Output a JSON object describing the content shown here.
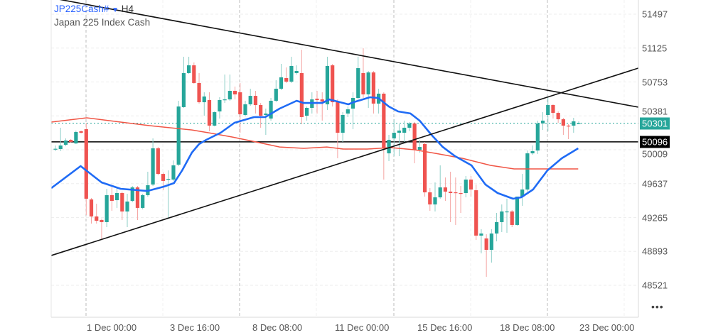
{
  "header": {
    "symbol": "JP225Cash#",
    "dropdown_icon": "caret-down-icon",
    "timeframe": "H4",
    "description": "Japan 225 Index Cash"
  },
  "more_menu": "•••",
  "colors": {
    "bull": "#26a69a",
    "bear": "#ef5350",
    "bull_wick": "#8ecfc8",
    "bear_wick": "#f5a4a2",
    "fast_ma": "#1f6bf5",
    "slow_ma": "#f05545",
    "trendline": "#111111",
    "current_price": "#26a69a",
    "level_badge": "#000000"
  },
  "chart_data": {
    "type": "candlestick",
    "title": "",
    "y_ticks": [
      51497,
      51125,
      50753,
      50381,
      50009,
      49637,
      49265,
      48893,
      48521
    ],
    "ylim": [
      48340,
      51653
    ],
    "x_ticks": [
      "1 Dec 00:00",
      "3 Dec 16:00",
      "8 Dec 08:00",
      "11 Dec 00:00",
      "15 Dec 16:00",
      "18 Dec 08:00",
      "23 Dec 00:00"
    ],
    "grid": true,
    "current_price": 50301,
    "horizontal_level": 50096,
    "ohlc": [
      [
        50017,
        50056,
        49994,
        50020
      ],
      [
        50017,
        50251,
        49994,
        50056
      ],
      [
        50064,
        50134,
        50048,
        50111
      ],
      [
        50118,
        50126,
        50087,
        50095
      ],
      [
        50079,
        50220,
        50072,
        50204
      ],
      [
        50212,
        50220,
        50188,
        50196
      ],
      [
        50235,
        50305,
        49293,
        49472
      ],
      [
        49464,
        49480,
        49199,
        49277
      ],
      [
        49277,
        49417,
        49199,
        49230
      ],
      [
        49238,
        49254,
        49028,
        49215
      ],
      [
        49215,
        49581,
        49160,
        49511
      ],
      [
        49511,
        49596,
        49339,
        49448
      ],
      [
        49456,
        49604,
        49371,
        49534
      ],
      [
        49534,
        49550,
        49238,
        49332
      ],
      [
        49332,
        49526,
        49160,
        49441
      ],
      [
        49448,
        49612,
        49433,
        49596
      ],
      [
        49596,
        49612,
        49238,
        49371
      ],
      [
        49371,
        49526,
        49355,
        49511
      ],
      [
        49511,
        49768,
        49495,
        49620
      ],
      [
        49628,
        50134,
        49612,
        50025
      ],
      [
        50025,
        50040,
        49729,
        49744
      ],
      [
        49744,
        49760,
        49565,
        49667
      ],
      [
        49682,
        49783,
        49261,
        49690
      ],
      [
        49682,
        49892,
        49667,
        49838
      ],
      [
        49846,
        50547,
        49830,
        50484
      ],
      [
        50477,
        51030,
        50469,
        50851
      ],
      [
        50851,
        51030,
        50843,
        50936
      ],
      [
        50936,
        50967,
        50734,
        50742
      ],
      [
        50742,
        50851,
        50516,
        50531
      ],
      [
        50531,
        50640,
        50383,
        50594
      ],
      [
        50555,
        50640,
        50212,
        50274
      ],
      [
        50274,
        50430,
        50266,
        50422
      ],
      [
        50430,
        50586,
        50352,
        50555
      ],
      [
        50555,
        50835,
        50523,
        50562
      ],
      [
        50562,
        50835,
        50547,
        50656
      ],
      [
        50656,
        50703,
        50562,
        50617
      ],
      [
        50640,
        50742,
        50196,
        50399
      ],
      [
        50391,
        50547,
        50375,
        50508
      ],
      [
        50508,
        50679,
        50492,
        50601
      ],
      [
        50601,
        50656,
        50407,
        50500
      ],
      [
        50500,
        50523,
        50251,
        50383
      ],
      [
        50391,
        50461,
        50173,
        50407
      ],
      [
        50352,
        50578,
        50329,
        50547
      ],
      [
        50547,
        50773,
        50531,
        50679
      ],
      [
        50679,
        50952,
        50664,
        50804
      ],
      [
        50796,
        50913,
        50742,
        50757
      ],
      [
        50757,
        51030,
        50742,
        50929
      ],
      [
        50851,
        50936,
        50835,
        50874
      ],
      [
        50851,
        51108,
        50290,
        50368
      ],
      [
        50383,
        50484,
        50329,
        50469
      ],
      [
        50469,
        50640,
        50407,
        50562
      ],
      [
        50570,
        50656,
        50407,
        50555
      ],
      [
        50562,
        50640,
        50329,
        50539
      ],
      [
        50508,
        51030,
        50446,
        50929
      ],
      [
        50936,
        50952,
        50484,
        50531
      ],
      [
        50531,
        50562,
        49916,
        50196
      ],
      [
        50196,
        50422,
        50095,
        50391
      ],
      [
        50407,
        50484,
        50368,
        50453
      ],
      [
        50461,
        50640,
        50235,
        50578
      ],
      [
        50578,
        51030,
        50562,
        50905
      ],
      [
        50851,
        51123,
        50578,
        50617
      ],
      [
        50617,
        50874,
        50469,
        50858
      ],
      [
        50858,
        50874,
        50407,
        50516
      ],
      [
        50516,
        50679,
        50407,
        50625
      ],
      [
        50625,
        50640,
        49682,
        50033
      ],
      [
        49970,
        50173,
        49885,
        50118
      ],
      [
        50134,
        50344,
        49939,
        50196
      ],
      [
        50196,
        50290,
        49939,
        50220
      ],
      [
        50196,
        50329,
        50095,
        50251
      ],
      [
        50251,
        50313,
        50212,
        50298
      ],
      [
        50298,
        50313,
        49861,
        50009
      ],
      [
        50009,
        50118,
        49978,
        50040
      ],
      [
        50072,
        50095,
        49495,
        49542
      ],
      [
        49542,
        49589,
        49339,
        49409
      ],
      [
        49409,
        49651,
        49332,
        49487
      ],
      [
        49487,
        49838,
        49472,
        49596
      ],
      [
        49596,
        49705,
        49448,
        49550
      ],
      [
        49550,
        49768,
        49215,
        49534
      ],
      [
        49542,
        49705,
        49184,
        49534
      ],
      [
        49534,
        49612,
        49316,
        49530
      ],
      [
        49534,
        49721,
        49487,
        49682
      ],
      [
        49682,
        49721,
        49495,
        49573
      ],
      [
        49565,
        49628,
        49020,
        49067
      ],
      [
        49067,
        49137,
        48872,
        49090
      ],
      [
        49036,
        49082,
        48615,
        48911
      ],
      [
        48911,
        49137,
        48771,
        49090
      ],
      [
        49090,
        49316,
        49004,
        49215
      ],
      [
        49215,
        49409,
        49106,
        49332
      ],
      [
        49324,
        49472,
        49098,
        49332
      ],
      [
        49332,
        49347,
        49160,
        49184
      ],
      [
        49184,
        49495,
        49176,
        49495
      ],
      [
        49495,
        49744,
        49394,
        49573
      ],
      [
        49573,
        50001,
        49550,
        49970
      ],
      [
        49970,
        50056,
        49955,
        49994
      ],
      [
        50001,
        50329,
        49963,
        50298
      ],
      [
        50298,
        50422,
        50227,
        50329
      ],
      [
        50391,
        50586,
        50212,
        50500
      ],
      [
        50500,
        50508,
        50352,
        50414
      ],
      [
        50414,
        50430,
        50305,
        50344
      ],
      [
        50344,
        50360,
        50173,
        50274
      ],
      [
        50274,
        50290,
        50126,
        50266
      ],
      [
        50274,
        50360,
        50196,
        50321
      ],
      [
        50298,
        50321,
        50290,
        50301
      ]
    ],
    "fast_ma": [
      [
        -0.8,
        49589
      ],
      [
        4.9,
        49830
      ],
      [
        9.0,
        49651
      ],
      [
        12.7,
        49581
      ],
      [
        17.9,
        49557
      ],
      [
        21.1,
        49604
      ],
      [
        23.1,
        49643
      ],
      [
        24.7,
        49783
      ],
      [
        26.6,
        49978
      ],
      [
        28.0,
        50072
      ],
      [
        29.4,
        50118
      ],
      [
        32.2,
        50196
      ],
      [
        34.9,
        50305
      ],
      [
        38.7,
        50368
      ],
      [
        40.9,
        50368
      ],
      [
        43.7,
        50461
      ],
      [
        47.0,
        50547
      ],
      [
        48.4,
        50523
      ],
      [
        52.0,
        50523
      ],
      [
        53.4,
        50562
      ],
      [
        57.1,
        50508
      ],
      [
        58.1,
        50531
      ],
      [
        59.9,
        50562
      ],
      [
        61.3,
        50586
      ],
      [
        62.9,
        50578
      ],
      [
        65.0,
        50484
      ],
      [
        66.8,
        50430
      ],
      [
        69.2,
        50407
      ],
      [
        71.0,
        50329
      ],
      [
        73.3,
        50173
      ],
      [
        75.5,
        50040
      ],
      [
        77.9,
        49939
      ],
      [
        81.1,
        49838
      ],
      [
        83.8,
        49628
      ],
      [
        86.2,
        49534
      ],
      [
        89.2,
        49472
      ],
      [
        90.8,
        49487
      ],
      [
        93.1,
        49573
      ],
      [
        95.9,
        49783
      ],
      [
        98.7,
        49916
      ],
      [
        101.9,
        50025
      ]
    ],
    "slow_ma": [
      [
        -0.8,
        50313
      ],
      [
        6.1,
        50360
      ],
      [
        12.7,
        50313
      ],
      [
        18.3,
        50274
      ],
      [
        26.6,
        50227
      ],
      [
        29.8,
        50196
      ],
      [
        34.5,
        50149
      ],
      [
        39.1,
        50095
      ],
      [
        43.7,
        50040
      ],
      [
        48.4,
        50025
      ],
      [
        52.9,
        50040
      ],
      [
        56.1,
        50017
      ],
      [
        60.8,
        50017
      ],
      [
        65.4,
        50033
      ],
      [
        70.0,
        50009
      ],
      [
        74.7,
        49963
      ],
      [
        79.3,
        49916
      ],
      [
        84.8,
        49838
      ],
      [
        89.4,
        49799
      ],
      [
        96.3,
        49799
      ],
      [
        101.9,
        49799
      ]
    ],
    "trendlines": [
      {
        "from": [
          -0.8,
          51676
        ],
        "to": [
          113.6,
          50477
        ]
      },
      {
        "from": [
          -0.8,
          48849
        ],
        "to": [
          113.6,
          50905
        ]
      }
    ]
  }
}
